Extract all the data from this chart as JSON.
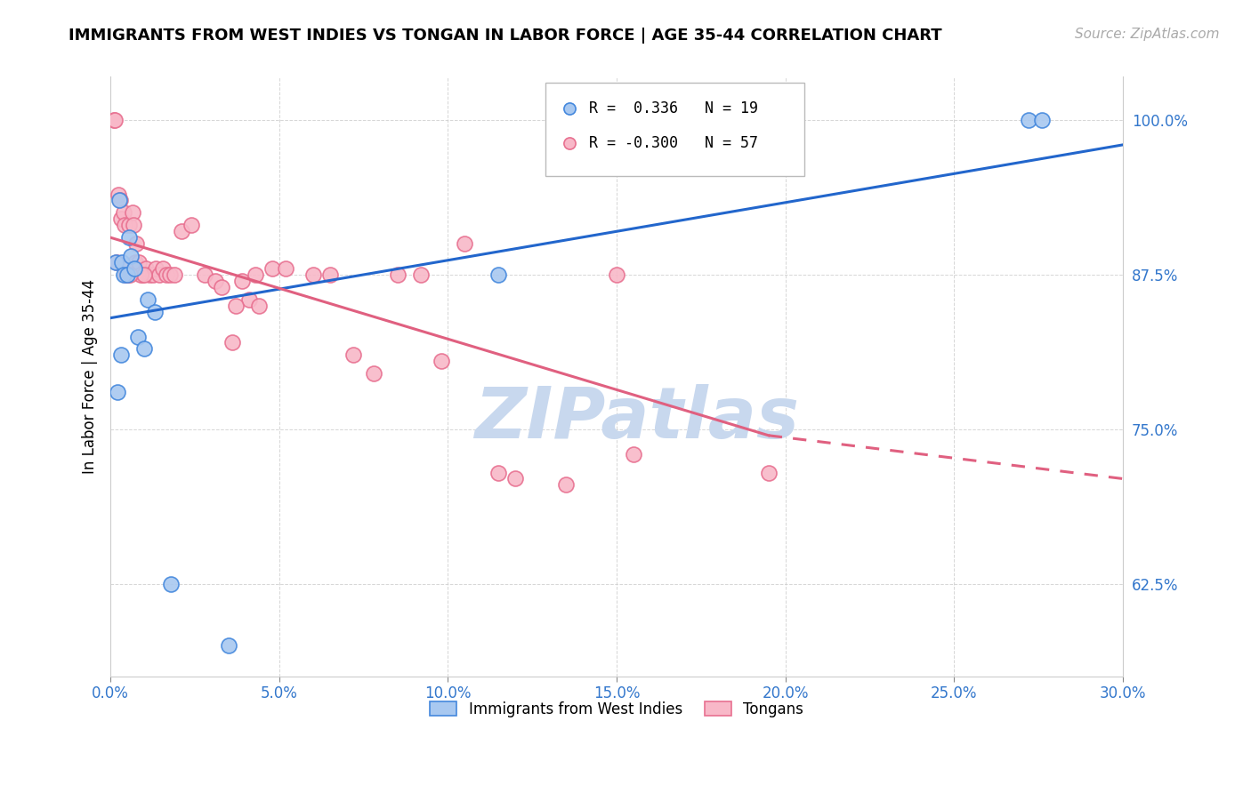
{
  "title": "IMMIGRANTS FROM WEST INDIES VS TONGAN IN LABOR FORCE | AGE 35-44 CORRELATION CHART",
  "source": "Source: ZipAtlas.com",
  "xlabel_vals": [
    0.0,
    5.0,
    10.0,
    15.0,
    20.0,
    25.0,
    30.0
  ],
  "ylabel": "In Labor Force | Age 35-44",
  "ylabel_vals": [
    62.5,
    75.0,
    87.5,
    100.0
  ],
  "xmin": 0.0,
  "xmax": 30.0,
  "ymin": 55.0,
  "ymax": 103.5,
  "legend_blue_r": "0.336",
  "legend_blue_n": "19",
  "legend_pink_r": "-0.300",
  "legend_pink_n": "57",
  "legend_blue_label": "Immigrants from West Indies",
  "legend_pink_label": "Tongans",
  "blue_fill": "#a8c8f0",
  "blue_edge": "#4488dd",
  "pink_fill": "#f8b8c8",
  "pink_edge": "#e87090",
  "blue_line": "#2266cc",
  "pink_line": "#e06080",
  "watermark_color": "#c8d8ee",
  "watermark_text": "ZIPatlas",
  "blue_points_x": [
    0.15,
    0.25,
    0.35,
    0.4,
    0.5,
    0.55,
    0.6,
    0.7,
    0.8,
    1.0,
    1.1,
    1.3,
    0.2,
    0.3,
    1.8,
    27.2,
    27.6,
    11.5,
    3.5
  ],
  "blue_points_y": [
    88.5,
    93.5,
    88.5,
    87.5,
    87.5,
    90.5,
    89.0,
    88.0,
    82.5,
    81.5,
    85.5,
    84.5,
    78.0,
    81.0,
    62.5,
    100.0,
    100.0,
    87.5,
    57.5
  ],
  "pink_points_x": [
    0.1,
    0.12,
    0.18,
    0.22,
    0.28,
    0.32,
    0.38,
    0.42,
    0.48,
    0.52,
    0.55,
    0.65,
    0.72,
    0.85,
    0.95,
    1.05,
    1.15,
    1.25,
    1.35,
    1.45,
    1.55,
    1.65,
    1.75,
    1.9,
    2.1,
    2.4,
    2.8,
    3.1,
    3.6,
    3.9,
    4.1,
    4.4,
    4.8,
    5.2,
    6.0,
    6.5,
    7.2,
    7.8,
    8.5,
    9.2,
    9.8,
    10.5,
    11.5,
    12.0,
    13.5,
    15.0,
    15.5,
    3.3,
    3.7,
    4.3,
    0.75,
    0.9,
    1.0,
    0.45,
    0.58,
    0.68,
    19.5
  ],
  "pink_points_y": [
    100.0,
    100.0,
    88.5,
    94.0,
    93.5,
    92.0,
    92.5,
    91.5,
    88.0,
    87.5,
    91.5,
    92.5,
    88.5,
    88.5,
    87.5,
    88.0,
    87.5,
    87.5,
    88.0,
    87.5,
    88.0,
    87.5,
    87.5,
    87.5,
    91.0,
    91.5,
    87.5,
    87.0,
    82.0,
    87.0,
    85.5,
    85.0,
    88.0,
    88.0,
    87.5,
    87.5,
    81.0,
    79.5,
    87.5,
    87.5,
    80.5,
    90.0,
    71.5,
    71.0,
    70.5,
    87.5,
    73.0,
    86.5,
    85.0,
    87.5,
    90.0,
    87.5,
    87.5,
    87.5,
    87.5,
    91.5,
    71.5
  ],
  "pink_solid_max_x": 19.5,
  "title_fontsize": 13,
  "source_fontsize": 11,
  "tick_fontsize": 12,
  "ylabel_fontsize": 12
}
